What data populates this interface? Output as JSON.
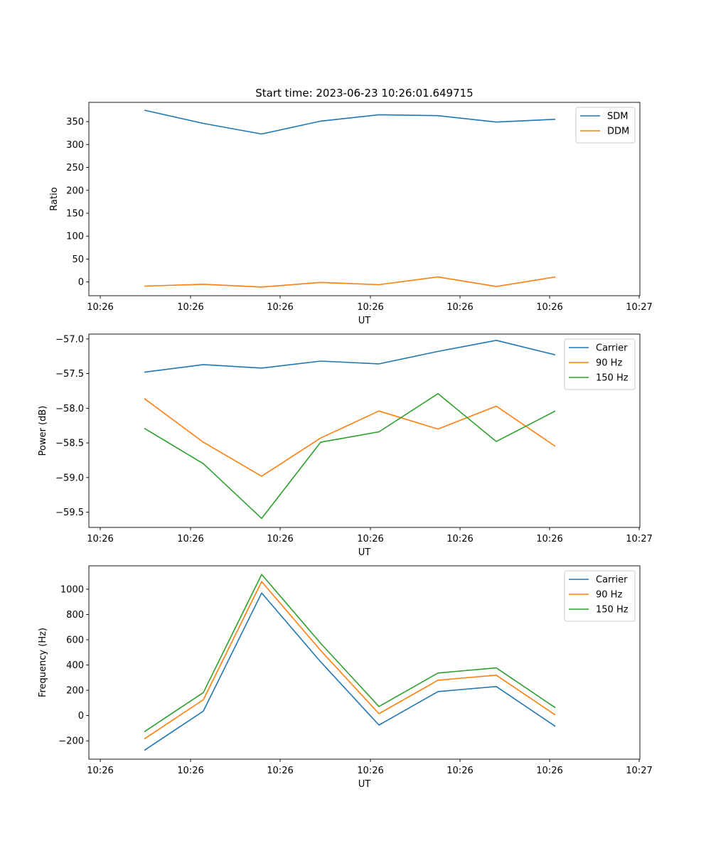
{
  "title": "Start time: 2023-06-23 10:26:01.649715",
  "colors": {
    "blue": "#1f77b4",
    "orange": "#ff7f0e",
    "green": "#2ca02c"
  },
  "chart_data": [
    {
      "type": "line",
      "xlabel": "UT",
      "ylabel": "Ratio",
      "xtick_labels": [
        "10:26",
        "10:26",
        "10:26",
        "10:26",
        "10:26",
        "10:26",
        "10:26"
      ],
      "xtick_last_label": "10:27",
      "ylim": [
        -30,
        392
      ],
      "yticks": [
        0,
        50,
        100,
        150,
        200,
        250,
        300,
        350
      ],
      "ytick_labels": [
        "0",
        "50",
        "100",
        "150",
        "200",
        "250",
        "300",
        "350"
      ],
      "legend_position": "top-right",
      "series": [
        {
          "name": "SDM",
          "color": "#1f77b4",
          "values": [
            375,
            346,
            323,
            351,
            365,
            363,
            349,
            355
          ]
        },
        {
          "name": "DDM",
          "color": "#ff7f0e",
          "values": [
            -9,
            -5,
            -11,
            -1,
            -6,
            11,
            -10,
            11
          ]
        }
      ]
    },
    {
      "type": "line",
      "xlabel": "UT",
      "ylabel": "Power (dB)",
      "xtick_labels": [
        "10:26",
        "10:26",
        "10:26",
        "10:26",
        "10:26",
        "10:26",
        "10:26"
      ],
      "xtick_last_label": "10:27",
      "ylim": [
        -59.72,
        -56.93
      ],
      "yticks": [
        -57.0,
        -57.5,
        -58.0,
        -58.5,
        -59.0,
        -59.5
      ],
      "ytick_labels": [
        "−57.0",
        "−57.5",
        "−58.0",
        "−58.5",
        "−59.0",
        "−59.5"
      ],
      "legend_position": "top-right",
      "series": [
        {
          "name": "Carrier",
          "color": "#1f77b4",
          "values": [
            -57.48,
            -57.37,
            -57.42,
            -57.32,
            -57.36,
            -57.18,
            -57.02,
            -57.23
          ]
        },
        {
          "name": "90 Hz",
          "color": "#ff7f0e",
          "values": [
            -57.86,
            -58.49,
            -58.98,
            -58.43,
            -58.04,
            -58.3,
            -57.97,
            -58.55
          ]
        },
        {
          "name": "150 Hz",
          "color": "#2ca02c",
          "values": [
            -58.29,
            -58.8,
            -59.59,
            -58.49,
            -58.34,
            -57.79,
            -58.48,
            -58.04
          ]
        }
      ]
    },
    {
      "type": "line",
      "xlabel": "UT",
      "ylabel": "Frequency (Hz)",
      "xtick_labels": [
        "10:26",
        "10:26",
        "10:26",
        "10:26",
        "10:26",
        "10:26",
        "10:26"
      ],
      "xtick_last_label": "10:27",
      "ylim": [
        -345,
        1185
      ],
      "yticks": [
        -200,
        0,
        200,
        400,
        600,
        800,
        1000
      ],
      "ytick_labels": [
        "−200",
        "0",
        "200",
        "400",
        "600",
        "800",
        "1000"
      ],
      "legend_position": "top-right",
      "series": [
        {
          "name": "Carrier",
          "color": "#1f77b4",
          "values": [
            -275,
            35,
            970,
            425,
            -75,
            190,
            230,
            -85
          ]
        },
        {
          "name": "90 Hz",
          "color": "#ff7f0e",
          "values": [
            -185,
            125,
            1060,
            515,
            15,
            280,
            320,
            5
          ]
        },
        {
          "name": "150 Hz",
          "color": "#2ca02c",
          "values": [
            -128,
            182,
            1117,
            572,
            72,
            337,
            377,
            62
          ]
        }
      ]
    }
  ]
}
